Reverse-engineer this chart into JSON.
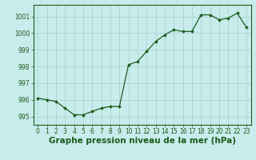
{
  "x": [
    0,
    1,
    2,
    3,
    4,
    5,
    6,
    7,
    8,
    9,
    10,
    11,
    12,
    13,
    14,
    15,
    16,
    17,
    18,
    19,
    20,
    21,
    22,
    23
  ],
  "y": [
    996.1,
    996.0,
    995.9,
    995.5,
    995.1,
    995.1,
    995.3,
    995.5,
    995.6,
    995.6,
    998.1,
    998.3,
    998.9,
    999.5,
    999.9,
    1000.2,
    1000.1,
    1000.1,
    1001.1,
    1001.1,
    1000.8,
    1000.9,
    1001.2,
    1000.35
  ],
  "line_color": "#1a5c1a",
  "marker": "D",
  "marker_size": 2.0,
  "background_color": "#c8ecec",
  "grid_color": "#aad4d4",
  "xlabel": "Graphe pression niveau de la mer (hPa)",
  "xlabel_fontsize": 7.5,
  "xlabel_color": "#1a5c1a",
  "xlabel_bold": true,
  "ylim": [
    994.5,
    1001.7
  ],
  "xlim": [
    -0.5,
    23.5
  ],
  "yticks": [
    995,
    996,
    997,
    998,
    999,
    1000,
    1001
  ],
  "xticks": [
    0,
    1,
    2,
    3,
    4,
    5,
    6,
    7,
    8,
    9,
    10,
    11,
    12,
    13,
    14,
    15,
    16,
    17,
    18,
    19,
    20,
    21,
    22,
    23
  ],
  "tick_color": "#1a5c1a",
  "tick_fontsize": 5.5,
  "axis_line_color": "#1a5c1a",
  "linewidth": 0.9
}
